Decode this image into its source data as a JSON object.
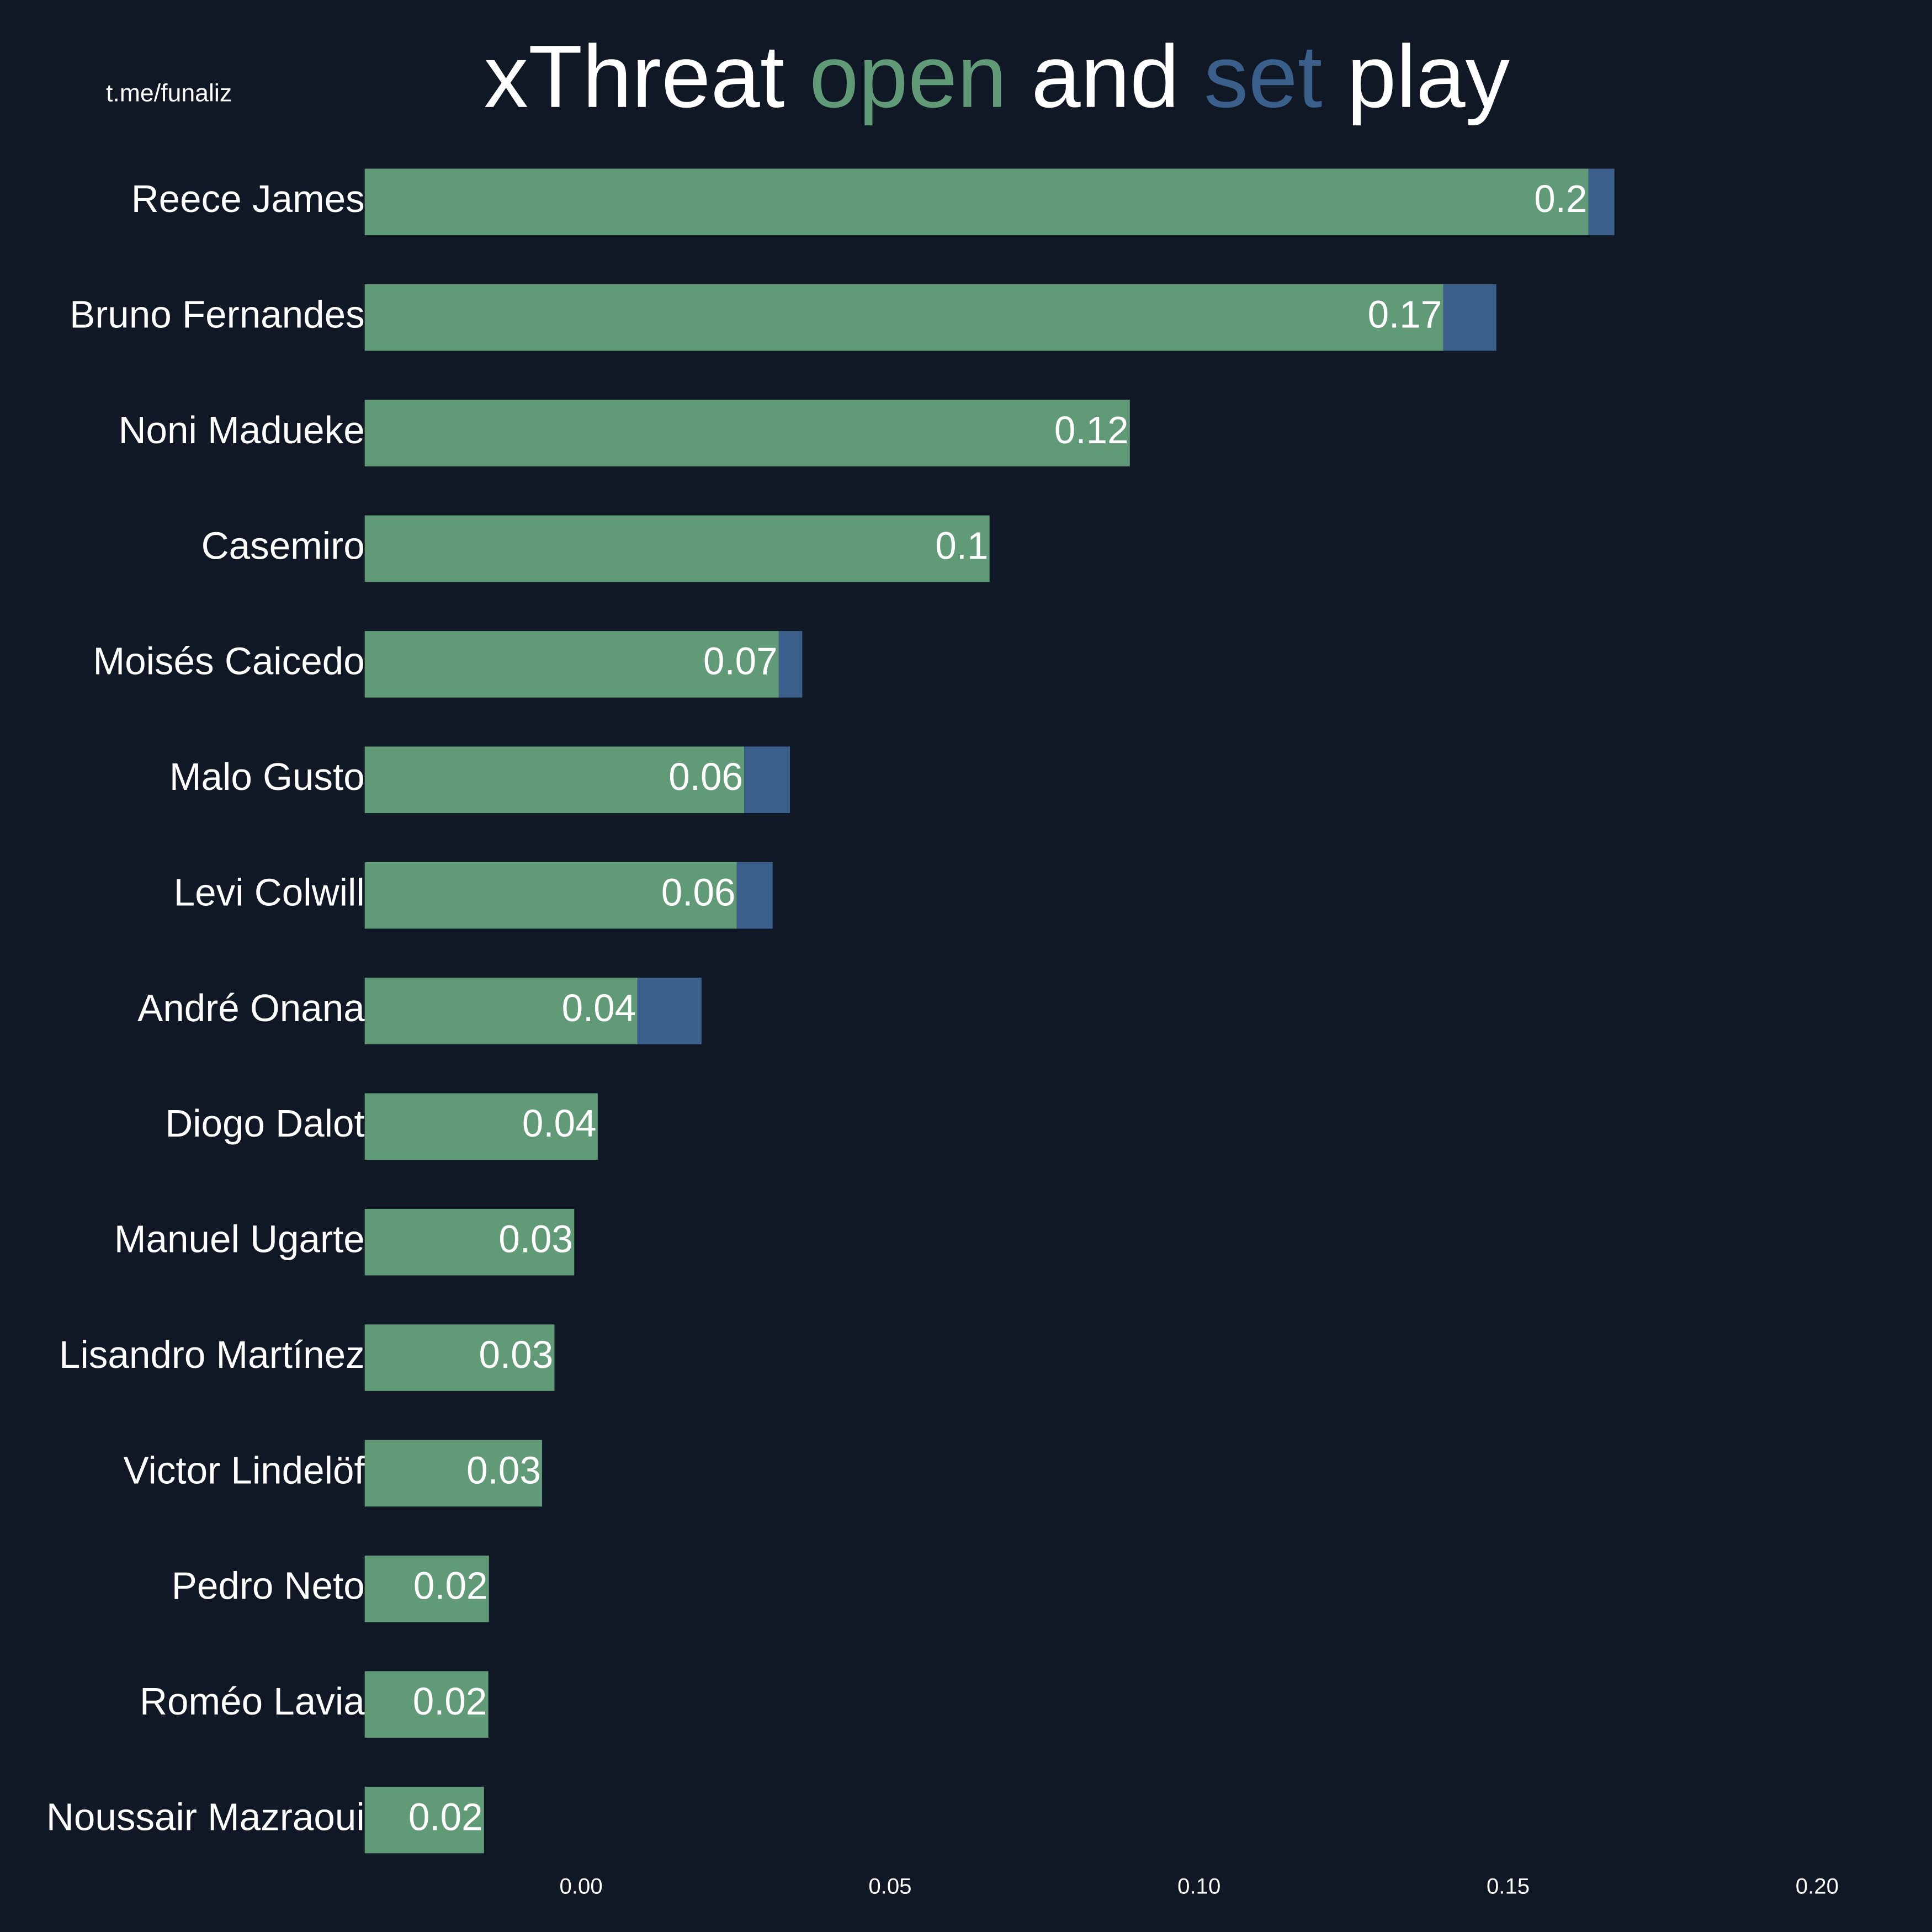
{
  "chart_data": {
    "type": "stacked_barh",
    "source": "t.me/funaliz",
    "title_parts": [
      "xThreat",
      "and",
      "play"
    ],
    "categories": [
      "Reece James",
      "Bruno Fernandes",
      "Noni Madueke",
      "Casemiro",
      "Moisés Caicedo",
      "Malo Gusto",
      "Levi Colwill",
      "André Onana",
      "Diogo Dalot",
      "Manuel Ugarte",
      "Lisandro Martínez",
      "Victor Lindelöf",
      "Pedro Neto",
      "Roméo Lavia",
      "Noussair Mazraoui"
    ],
    "series": [
      {
        "name": "open",
        "color": "#619a77",
        "values": [
          0.198,
          0.1745,
          0.1238,
          0.1011,
          0.067,
          0.0614,
          0.0602,
          0.0441,
          0.0377,
          0.0339,
          0.0307,
          0.0287,
          0.0201,
          0.02,
          0.0193
        ],
        "value_labels": [
          "0.2",
          "0.17",
          "0.12",
          "0.1",
          "0.07",
          "0.06",
          "0.06",
          "0.04",
          "0.04",
          "0.03",
          "0.03",
          "0.03",
          "0.02",
          "0.02",
          "0.02"
        ]
      },
      {
        "name": "set",
        "color": "#3a5f8a",
        "values": [
          0.0042,
          0.0086,
          0,
          0,
          0.0038,
          0.0074,
          0.0058,
          0.0104,
          0,
          0,
          0,
          0,
          0,
          0,
          0
        ]
      }
    ],
    "xlim": [
      -0.035,
      0.215
    ],
    "xticks": [
      {
        "value": 0,
        "label": "0.00"
      },
      {
        "value": 0.05,
        "label": "0.05"
      },
      {
        "value": 0.1,
        "label": "0.10"
      },
      {
        "value": 0.15,
        "label": "0.15"
      },
      {
        "value": 0.2,
        "label": "0.20"
      }
    ],
    "grid": false
  }
}
